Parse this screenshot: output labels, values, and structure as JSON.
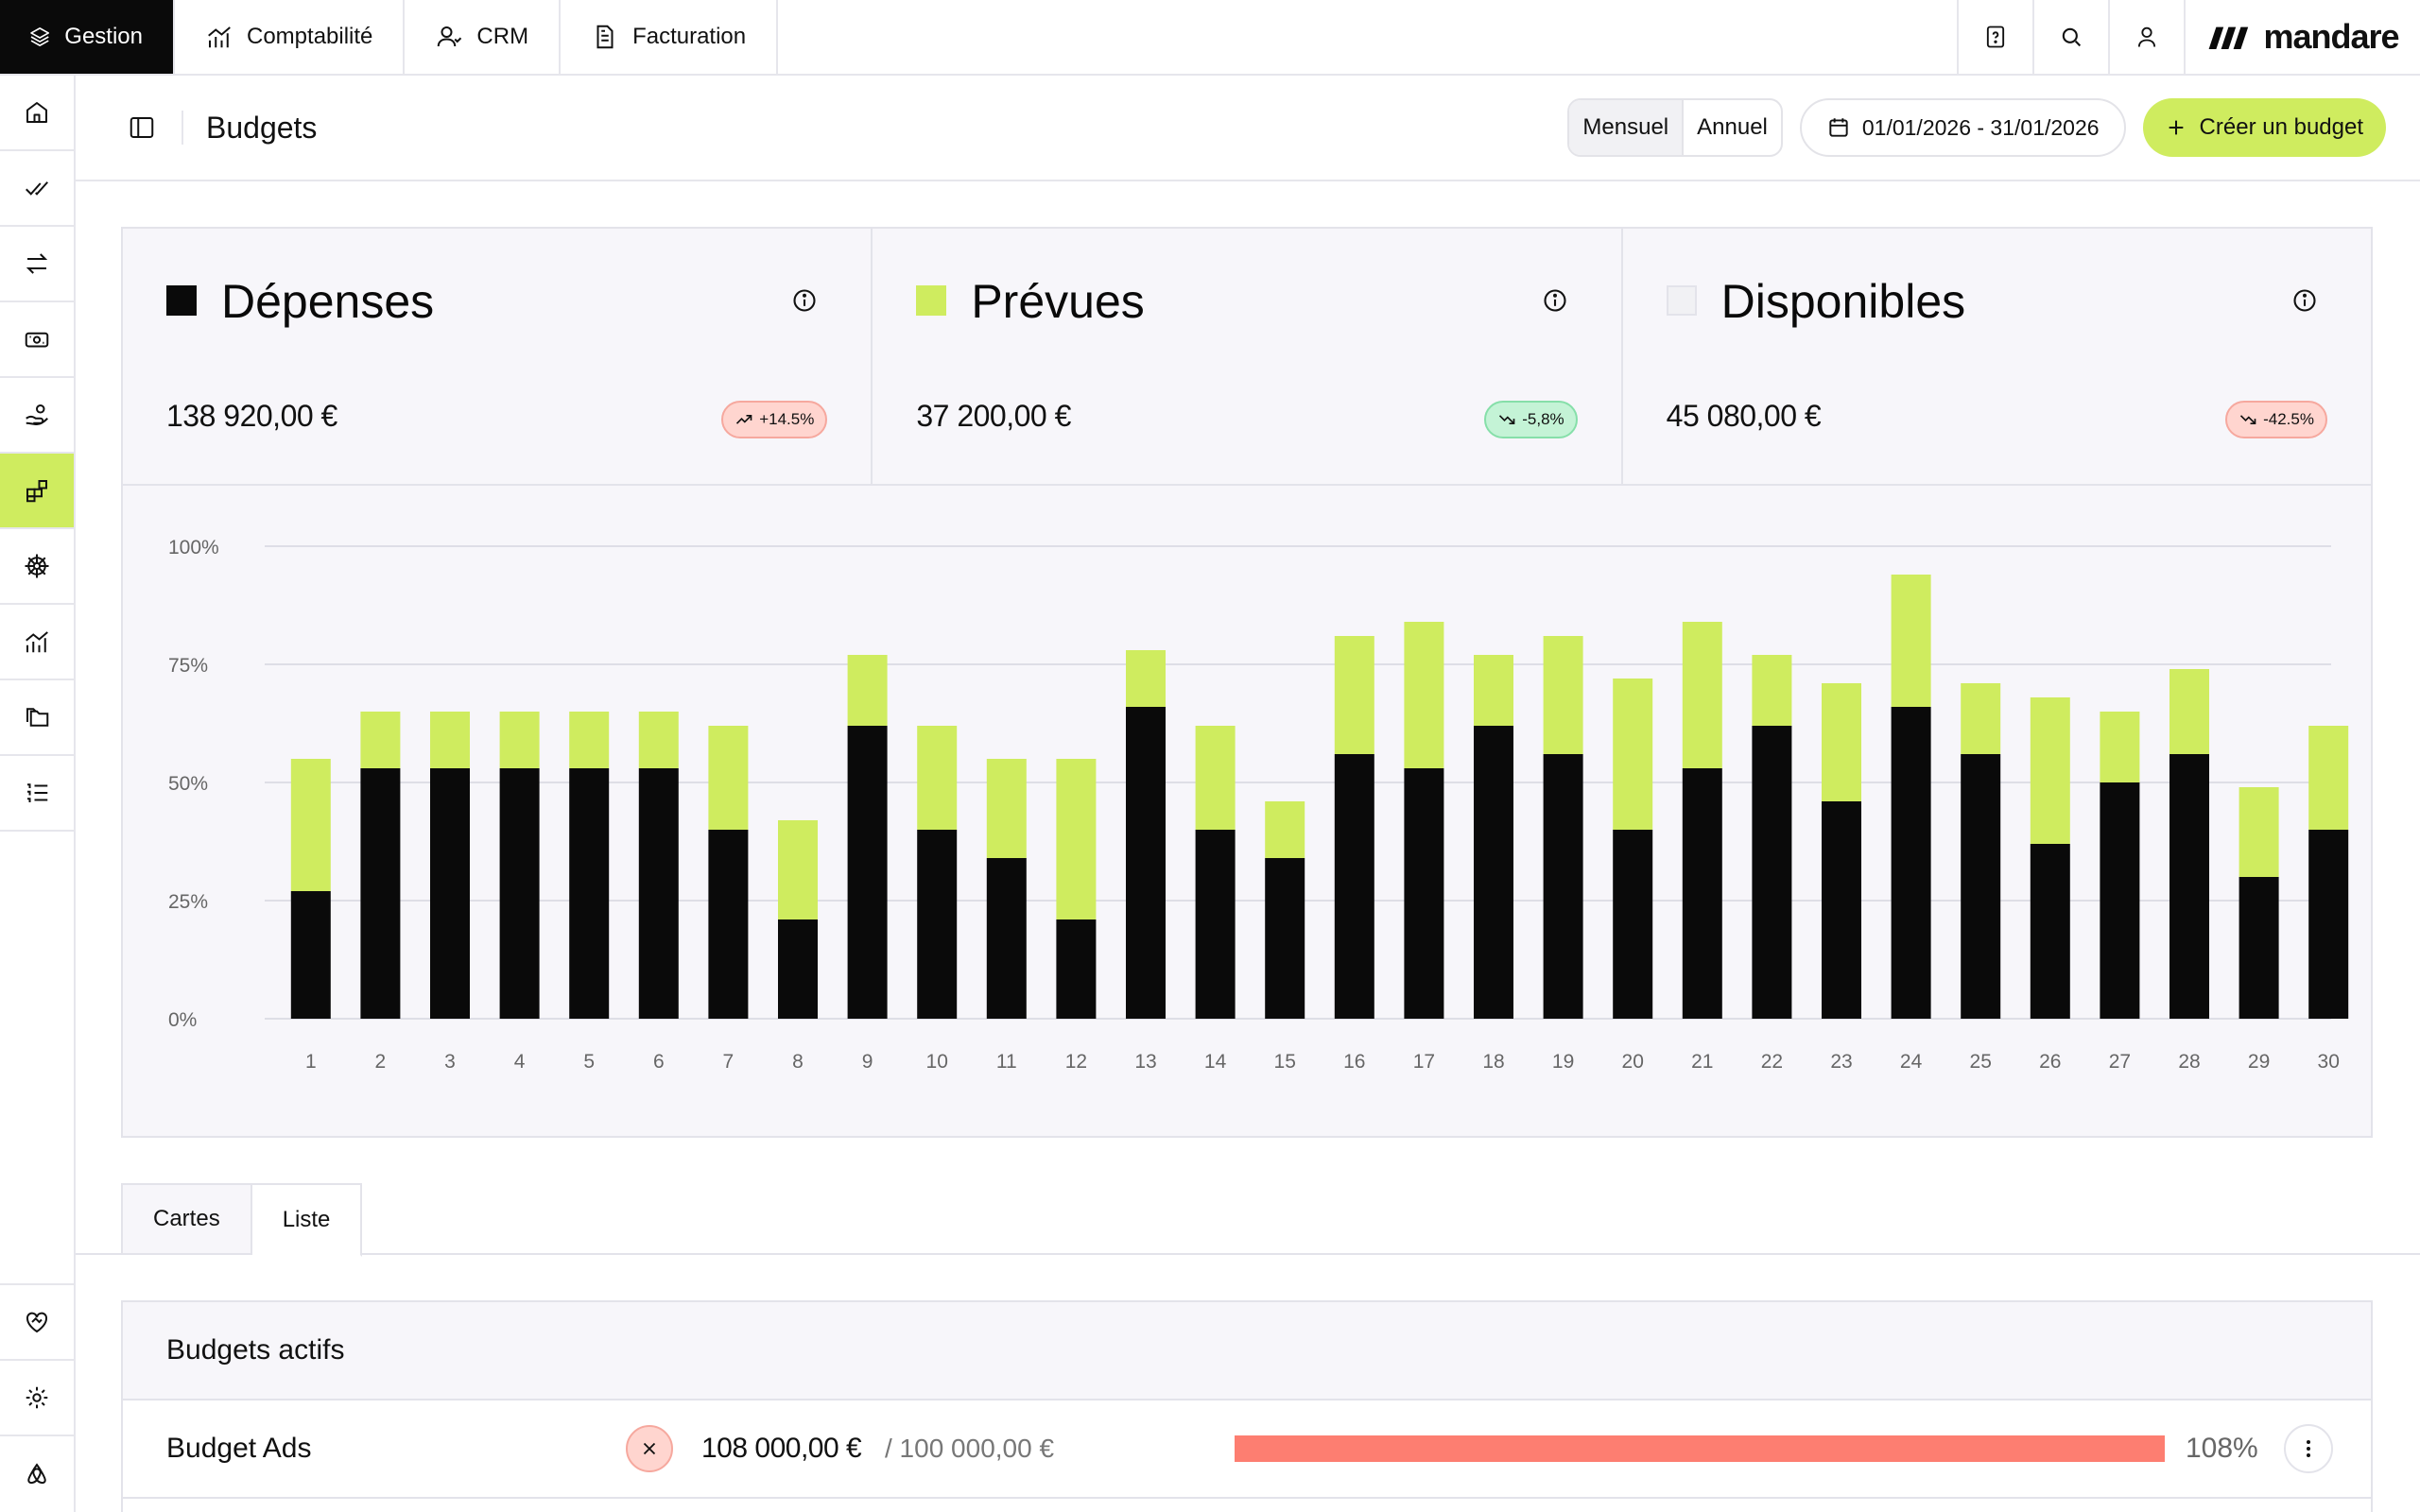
{
  "topnav": {
    "tabs": [
      {
        "label": "Gestion",
        "icon": "layers-icon"
      },
      {
        "label": "Comptabilité",
        "icon": "chart-icon"
      },
      {
        "label": "CRM",
        "icon": "user-icon"
      },
      {
        "label": "Facturation",
        "icon": "document-icon"
      }
    ],
    "brand": "mandare"
  },
  "page": {
    "title": "Budgets",
    "period_options": [
      "Mensuel",
      "Annuel"
    ],
    "selected_period": "Mensuel",
    "date_range": "01/01/2026 - 31/01/2026",
    "create_label": "Créer un budget"
  },
  "cards": [
    {
      "title": "Dépenses",
      "amount": "138 920,00 €",
      "badge": "+14.5%",
      "trend": "up",
      "color": "#0a0a0a"
    },
    {
      "title": "Prévues",
      "amount": "37 200,00 €",
      "badge": "-5,8%",
      "trend": "down-good",
      "color": "#cfec5f"
    },
    {
      "title": "Disponibles",
      "amount": "45 080,00 €",
      "badge": "-42.5%",
      "trend": "down-bad",
      "color": "#f1f1f4"
    }
  ],
  "chart_data": {
    "type": "bar",
    "stacked": true,
    "categories": [
      "1",
      "2",
      "3",
      "4",
      "5",
      "6",
      "7",
      "8",
      "9",
      "10",
      "11",
      "12",
      "13",
      "14",
      "15",
      "16",
      "17",
      "18",
      "19",
      "20",
      "21",
      "22",
      "23",
      "24",
      "25",
      "26",
      "27",
      "28",
      "29",
      "30"
    ],
    "series": [
      {
        "color": "#0a0a0a",
        "values": [
          27,
          53,
          53,
          53,
          53,
          53,
          40,
          21,
          62,
          40,
          34,
          21,
          66,
          40,
          34,
          56,
          53,
          62,
          56,
          40,
          53,
          62,
          46,
          66,
          56,
          37,
          50,
          56,
          30,
          40
        ]
      },
      {
        "color": "#cfec5f",
        "values": [
          28,
          12,
          12,
          12,
          12,
          12,
          22,
          21,
          15,
          22,
          21,
          34,
          12,
          22,
          12,
          25,
          31,
          15,
          25,
          32,
          31,
          15,
          25,
          28,
          15,
          31,
          15,
          18,
          19,
          22
        ]
      }
    ],
    "yticks": [
      "0%",
      "25%",
      "50%",
      "75%",
      "100%"
    ],
    "ylim": [
      0,
      100
    ],
    "grid": true
  },
  "tabs": [
    "Cartes",
    "Liste"
  ],
  "selected_tab": "Liste",
  "budgets": {
    "heading": "Budgets actifs",
    "rows": [
      {
        "name": "Budget Ads",
        "spent": "108 000,00 €",
        "total": "/ 100 000,00 €",
        "progress": 1.08,
        "percent": "108%"
      }
    ]
  }
}
